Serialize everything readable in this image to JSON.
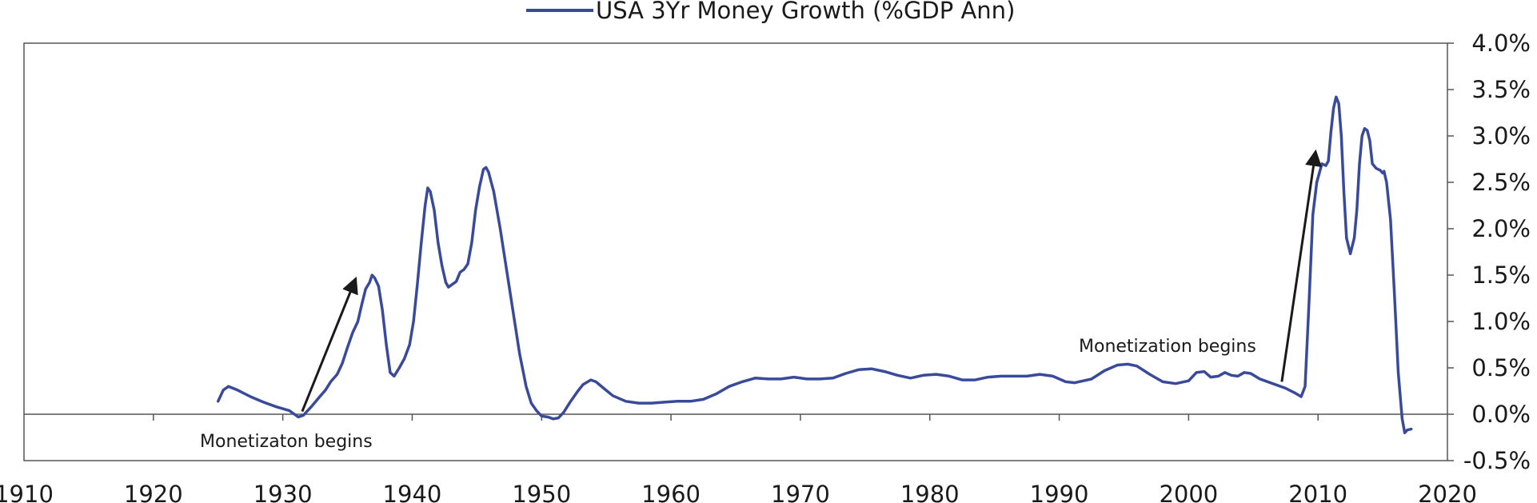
{
  "chart_data": {
    "type": "line",
    "title": "",
    "xlabel": "",
    "ylabel": "",
    "xlim": [
      1910,
      2020
    ],
    "ylim": [
      -0.5,
      4.0
    ],
    "grid": false,
    "legend_position": "top-center",
    "x_ticks": [
      1910,
      1920,
      1930,
      1940,
      1950,
      1960,
      1970,
      1980,
      1990,
      2000,
      2010,
      2020
    ],
    "x_tick_labels": [
      "1910",
      "1920",
      "1930",
      "1940",
      "1950",
      "1960",
      "1970",
      "1980",
      "1990",
      "2000",
      "2010",
      "2020"
    ],
    "y_ticks": [
      -0.5,
      0.0,
      0.5,
      1.0,
      1.5,
      2.0,
      2.5,
      3.0,
      3.5,
      4.0
    ],
    "y_tick_labels": [
      "-0.5%",
      "0.0%",
      "0.5%",
      "1.0%",
      "1.5%",
      "2.0%",
      "2.5%",
      "3.0%",
      "3.5%",
      "4.0%"
    ],
    "y_axis_side": "right",
    "series": [
      {
        "name": "USA 3Yr Money Growth (%GDP Ann)",
        "color": "#3a4a9a",
        "points": [
          [
            1925.0,
            0.14
          ],
          [
            1925.4,
            0.26
          ],
          [
            1925.8,
            0.3
          ],
          [
            1926.5,
            0.26
          ],
          [
            1927.5,
            0.19
          ],
          [
            1928.5,
            0.13
          ],
          [
            1929.5,
            0.08
          ],
          [
            1930.5,
            0.04
          ],
          [
            1931.2,
            -0.03
          ],
          [
            1931.6,
            -0.01
          ],
          [
            1932.2,
            0.08
          ],
          [
            1932.8,
            0.18
          ],
          [
            1933.3,
            0.26
          ],
          [
            1933.7,
            0.35
          ],
          [
            1934.2,
            0.43
          ],
          [
            1934.6,
            0.55
          ],
          [
            1935.0,
            0.72
          ],
          [
            1935.4,
            0.88
          ],
          [
            1935.8,
            1.0
          ],
          [
            1936.1,
            1.18
          ],
          [
            1936.4,
            1.35
          ],
          [
            1936.7,
            1.42
          ],
          [
            1936.9,
            1.5
          ],
          [
            1937.1,
            1.47
          ],
          [
            1937.4,
            1.38
          ],
          [
            1937.7,
            1.12
          ],
          [
            1938.0,
            0.75
          ],
          [
            1938.3,
            0.45
          ],
          [
            1938.6,
            0.41
          ],
          [
            1939.0,
            0.5
          ],
          [
            1939.4,
            0.6
          ],
          [
            1939.8,
            0.75
          ],
          [
            1940.1,
            1.0
          ],
          [
            1940.4,
            1.4
          ],
          [
            1940.7,
            1.85
          ],
          [
            1941.0,
            2.25
          ],
          [
            1941.2,
            2.44
          ],
          [
            1941.4,
            2.4
          ],
          [
            1941.7,
            2.2
          ],
          [
            1942.0,
            1.85
          ],
          [
            1942.3,
            1.6
          ],
          [
            1942.6,
            1.42
          ],
          [
            1942.8,
            1.37
          ],
          [
            1943.1,
            1.4
          ],
          [
            1943.4,
            1.43
          ],
          [
            1943.7,
            1.53
          ],
          [
            1944.0,
            1.56
          ],
          [
            1944.3,
            1.62
          ],
          [
            1944.6,
            1.85
          ],
          [
            1944.9,
            2.2
          ],
          [
            1945.2,
            2.45
          ],
          [
            1945.5,
            2.64
          ],
          [
            1945.7,
            2.66
          ],
          [
            1945.9,
            2.61
          ],
          [
            1946.3,
            2.4
          ],
          [
            1946.8,
            2.0
          ],
          [
            1947.3,
            1.55
          ],
          [
            1947.8,
            1.1
          ],
          [
            1948.3,
            0.65
          ],
          [
            1948.8,
            0.3
          ],
          [
            1949.2,
            0.12
          ],
          [
            1949.6,
            0.04
          ],
          [
            1950.0,
            -0.02
          ],
          [
            1950.5,
            -0.03
          ],
          [
            1950.9,
            -0.05
          ],
          [
            1951.3,
            -0.04
          ],
          [
            1951.7,
            0.02
          ],
          [
            1952.2,
            0.13
          ],
          [
            1952.8,
            0.25
          ],
          [
            1953.2,
            0.32
          ],
          [
            1953.8,
            0.37
          ],
          [
            1954.2,
            0.35
          ],
          [
            1954.8,
            0.28
          ],
          [
            1955.5,
            0.2
          ],
          [
            1956.5,
            0.14
          ],
          [
            1957.5,
            0.12
          ],
          [
            1958.5,
            0.12
          ],
          [
            1959.5,
            0.13
          ],
          [
            1960.5,
            0.14
          ],
          [
            1961.5,
            0.14
          ],
          [
            1962.5,
            0.16
          ],
          [
            1963.5,
            0.22
          ],
          [
            1964.5,
            0.3
          ],
          [
            1965.5,
            0.35
          ],
          [
            1966.5,
            0.39
          ],
          [
            1967.5,
            0.38
          ],
          [
            1968.5,
            0.38
          ],
          [
            1969.5,
            0.4
          ],
          [
            1970.5,
            0.38
          ],
          [
            1971.5,
            0.38
          ],
          [
            1972.5,
            0.39
          ],
          [
            1973.5,
            0.44
          ],
          [
            1974.5,
            0.48
          ],
          [
            1975.5,
            0.49
          ],
          [
            1976.5,
            0.46
          ],
          [
            1977.5,
            0.42
          ],
          [
            1978.5,
            0.39
          ],
          [
            1979.5,
            0.42
          ],
          [
            1980.5,
            0.43
          ],
          [
            1981.5,
            0.41
          ],
          [
            1982.5,
            0.37
          ],
          [
            1983.5,
            0.37
          ],
          [
            1984.5,
            0.4
          ],
          [
            1985.5,
            0.41
          ],
          [
            1986.5,
            0.41
          ],
          [
            1987.5,
            0.41
          ],
          [
            1988.5,
            0.43
          ],
          [
            1989.5,
            0.41
          ],
          [
            1990.5,
            0.35
          ],
          [
            1991.2,
            0.34
          ],
          [
            1992.5,
            0.38
          ],
          [
            1993.5,
            0.47
          ],
          [
            1994.5,
            0.53
          ],
          [
            1995.3,
            0.54
          ],
          [
            1996.0,
            0.52
          ],
          [
            1997.0,
            0.43
          ],
          [
            1998.0,
            0.35
          ],
          [
            1999.0,
            0.33
          ],
          [
            2000.0,
            0.36
          ],
          [
            2000.6,
            0.45
          ],
          [
            2001.2,
            0.46
          ],
          [
            2001.7,
            0.4
          ],
          [
            2002.3,
            0.41
          ],
          [
            2002.8,
            0.45
          ],
          [
            2003.3,
            0.42
          ],
          [
            2003.8,
            0.41
          ],
          [
            2004.3,
            0.45
          ],
          [
            2004.8,
            0.44
          ],
          [
            2005.5,
            0.38
          ],
          [
            2006.5,
            0.33
          ],
          [
            2007.5,
            0.28
          ],
          [
            2008.2,
            0.23
          ],
          [
            2008.7,
            0.19
          ],
          [
            2009.0,
            0.3
          ],
          [
            2009.3,
            1.2
          ],
          [
            2009.6,
            2.15
          ],
          [
            2009.9,
            2.5
          ],
          [
            2010.1,
            2.6
          ],
          [
            2010.3,
            2.7
          ],
          [
            2010.6,
            2.68
          ],
          [
            2010.8,
            2.73
          ],
          [
            2011.0,
            3.05
          ],
          [
            2011.2,
            3.3
          ],
          [
            2011.4,
            3.42
          ],
          [
            2011.6,
            3.35
          ],
          [
            2011.8,
            3.0
          ],
          [
            2012.0,
            2.4
          ],
          [
            2012.2,
            1.9
          ],
          [
            2012.5,
            1.73
          ],
          [
            2012.8,
            1.9
          ],
          [
            2013.0,
            2.2
          ],
          [
            2013.2,
            2.7
          ],
          [
            2013.4,
            3.0
          ],
          [
            2013.6,
            3.08
          ],
          [
            2013.8,
            3.06
          ],
          [
            2014.0,
            2.95
          ],
          [
            2014.2,
            2.7
          ],
          [
            2014.5,
            2.65
          ],
          [
            2014.8,
            2.63
          ],
          [
            2015.0,
            2.6
          ],
          [
            2015.1,
            2.62
          ],
          [
            2015.3,
            2.5
          ],
          [
            2015.6,
            2.1
          ],
          [
            2015.9,
            1.3
          ],
          [
            2016.2,
            0.45
          ],
          [
            2016.5,
            -0.05
          ],
          [
            2016.7,
            -0.2
          ],
          [
            2016.9,
            -0.17
          ],
          [
            2017.2,
            -0.16
          ]
        ]
      }
    ],
    "annotations": [
      {
        "text": "Monetizaton begins",
        "arrow_from": [
          1931.5,
          0.03
        ],
        "arrow_to": [
          1935.6,
          1.45
        ]
      },
      {
        "text": "Monetization begins",
        "arrow_from": [
          2007.2,
          0.35
        ],
        "arrow_to": [
          2009.8,
          2.82
        ]
      }
    ]
  }
}
